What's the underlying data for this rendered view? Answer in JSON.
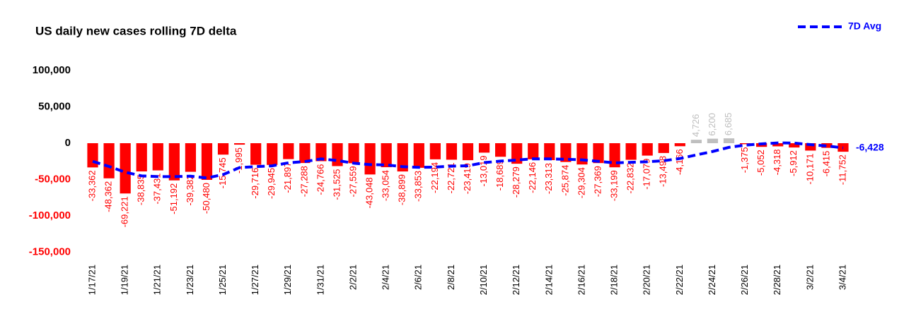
{
  "chart_data": {
    "type": "bar",
    "title": "US daily new cases rolling 7D delta",
    "categories": [
      "1/17/21",
      null,
      "1/19/21",
      null,
      "1/21/21",
      null,
      "1/23/21",
      null,
      "1/25/21",
      null,
      "1/27/21",
      null,
      "1/29/21",
      null,
      "1/31/21",
      null,
      "2/2/21",
      null,
      "2/4/21",
      null,
      "2/6/21",
      null,
      "2/8/21",
      null,
      "2/10/21",
      null,
      "2/12/21",
      null,
      "2/14/21",
      null,
      "2/16/21",
      null,
      "2/18/21",
      null,
      "2/20/21",
      null,
      "2/22/21",
      null,
      "2/24/21",
      null,
      "2/26/21",
      null,
      "2/28/21",
      null,
      "3/2/21",
      null,
      "3/4/21"
    ],
    "series": [
      {
        "type": "bar",
        "color": "#ff0000",
        "positive_color": "#bfbfbf",
        "values": [
          -33362,
          -48362,
          -69221,
          -38835,
          -37431,
          -51192,
          -39382,
          -50480,
          -15745,
          -1995,
          -29716,
          -29945,
          -21897,
          -27288,
          -24766,
          -31525,
          -27559,
          -43048,
          -33054,
          -38899,
          -33853,
          -22194,
          -22721,
          -23419,
          -13019,
          -18689,
          -28279,
          -22146,
          -23313,
          -25874,
          -29304,
          -27369,
          -33199,
          -22832,
          -17079,
          -13498,
          -4166,
          4726,
          6200,
          6685,
          -1375,
          -5052,
          -4318,
          -5912,
          -10171,
          -6415,
          -11752
        ],
        "value_labels": [
          "-33,362",
          "-48,362",
          "-69,221",
          "-38,835",
          "-37,431",
          "-51,192",
          "-39,382",
          "-50,480",
          "-15,745",
          "-1,995",
          "-29,716",
          "-29,945",
          "-21,897",
          "-27,288",
          "-24,766",
          "-31,525",
          "-27,559",
          "-43,048",
          "-33,054",
          "-38,899",
          "-33,853",
          "-22,194",
          "-22,721",
          "-23,419",
          "-13,019",
          "-18,689",
          "-28,279",
          "-22,146",
          "-23,313",
          "-25,874",
          "-29,304",
          "-27,369",
          "-33,199",
          "-22,832",
          "-17,079",
          "-13,498",
          "-4,166",
          "4,726",
          "6,200",
          "6,685",
          "-1,375",
          "-5,052",
          "-4,318",
          "-5,912",
          "-10,171",
          "-6,415",
          "-11,752"
        ]
      },
      {
        "type": "line",
        "name": "7D Avg",
        "color": "#0000ff",
        "dashed": true,
        "end_label": "-6,428",
        "values": [
          -25000,
          -32000,
          -40000,
          -45000,
          -46000,
          -46000,
          -45398,
          -47843,
          -43184,
          -33580,
          -32277,
          -31208,
          -27023,
          -25295,
          -21622,
          -23876,
          -27528,
          -29433,
          -29877,
          -32306,
          -33243,
          -32876,
          -31618,
          -31027,
          -26737,
          -24685,
          -23168,
          -21495,
          -21655,
          -22106,
          -22946,
          -24996,
          -27069,
          -26291,
          -25567,
          -24165,
          -21064,
          -16202,
          -11407,
          -5709,
          -2644,
          -926,
          386,
          136,
          -1992,
          -3794,
          -6428
        ]
      }
    ],
    "ylim": [
      -160000,
      110000
    ],
    "yticks": [
      {
        "value": 100000,
        "label": "100,000"
      },
      {
        "value": 50000,
        "label": "50,000"
      },
      0,
      {
        "value": -50000,
        "label": "-50,000"
      },
      {
        "value": -100000,
        "label": "-100,000"
      },
      {
        "value": -150000,
        "label": "-150,000"
      }
    ],
    "negative_tick_color": "#ff0000",
    "grid": false,
    "legend": "top-right"
  }
}
